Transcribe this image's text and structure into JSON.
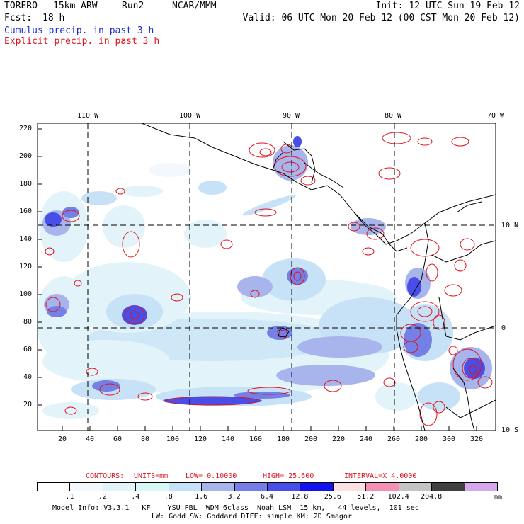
{
  "header": {
    "model": "TORERO",
    "resolution": "15km ARW",
    "run": "Run2",
    "org": "NCAR/MMM",
    "init": "Init: 12 UTC Sun 19 Feb 12",
    "fcst_label": "Fcst:",
    "fcst_value": "18 h",
    "valid": "Valid: 06 UTC Mon 20 Feb 12 (00 CST Mon 20 Feb 12)",
    "cumulus_legend": "Cumulus precip. in past 3 h",
    "explicit_legend": "Explicit precip. in past 3 h"
  },
  "map": {
    "top_lon_labels": [
      "110 W",
      "100 W",
      "90 W",
      "80 W",
      "70 W"
    ],
    "right_lat_labels": [
      "10 N",
      "0",
      "10 S"
    ],
    "y_tick_labels": [
      "220",
      "200",
      "180",
      "160",
      "140",
      "120",
      "100",
      "80",
      "60",
      "40",
      "20"
    ],
    "x_tick_labels": [
      "20",
      "40",
      "60",
      "80",
      "100",
      "120",
      "140",
      "160",
      "180",
      "200",
      "220",
      "240",
      "260",
      "280",
      "300",
      "320"
    ]
  },
  "contours": {
    "label": "CONTOURS:",
    "units": "UNITS=mm",
    "low": "LOW= 0.10000",
    "high": "HIGH= 25.600",
    "interval": "INTERVAL=X 4.0000"
  },
  "colorbar": {
    "labels": [
      ".1",
      ".2",
      ".4",
      ".8",
      "1.6",
      "3.2",
      "6.4",
      "12.8",
      "25.6",
      "51.2",
      "102.4",
      "204.8"
    ],
    "unit": "mm",
    "colors": [
      "#ffffff",
      "#f2f8fc",
      "#e2f3f9",
      "#d8f8f8",
      "#c7e2f7",
      "#a8b4ec",
      "#7480e6",
      "#4a4ee8",
      "#1212f0",
      "#fce0e2",
      "#f490b6",
      "#c4c4c4",
      "#404040",
      "#d8a8ec"
    ]
  },
  "footer": {
    "line1": "Model Info: V3.3.1   KF    YSU PBL  WDM 6class  Noah LSM  15 km,   44 levels,  101 sec",
    "line2": "LW: Godd SW: Goddard DIFF: simple KM: 2D Smagor"
  }
}
